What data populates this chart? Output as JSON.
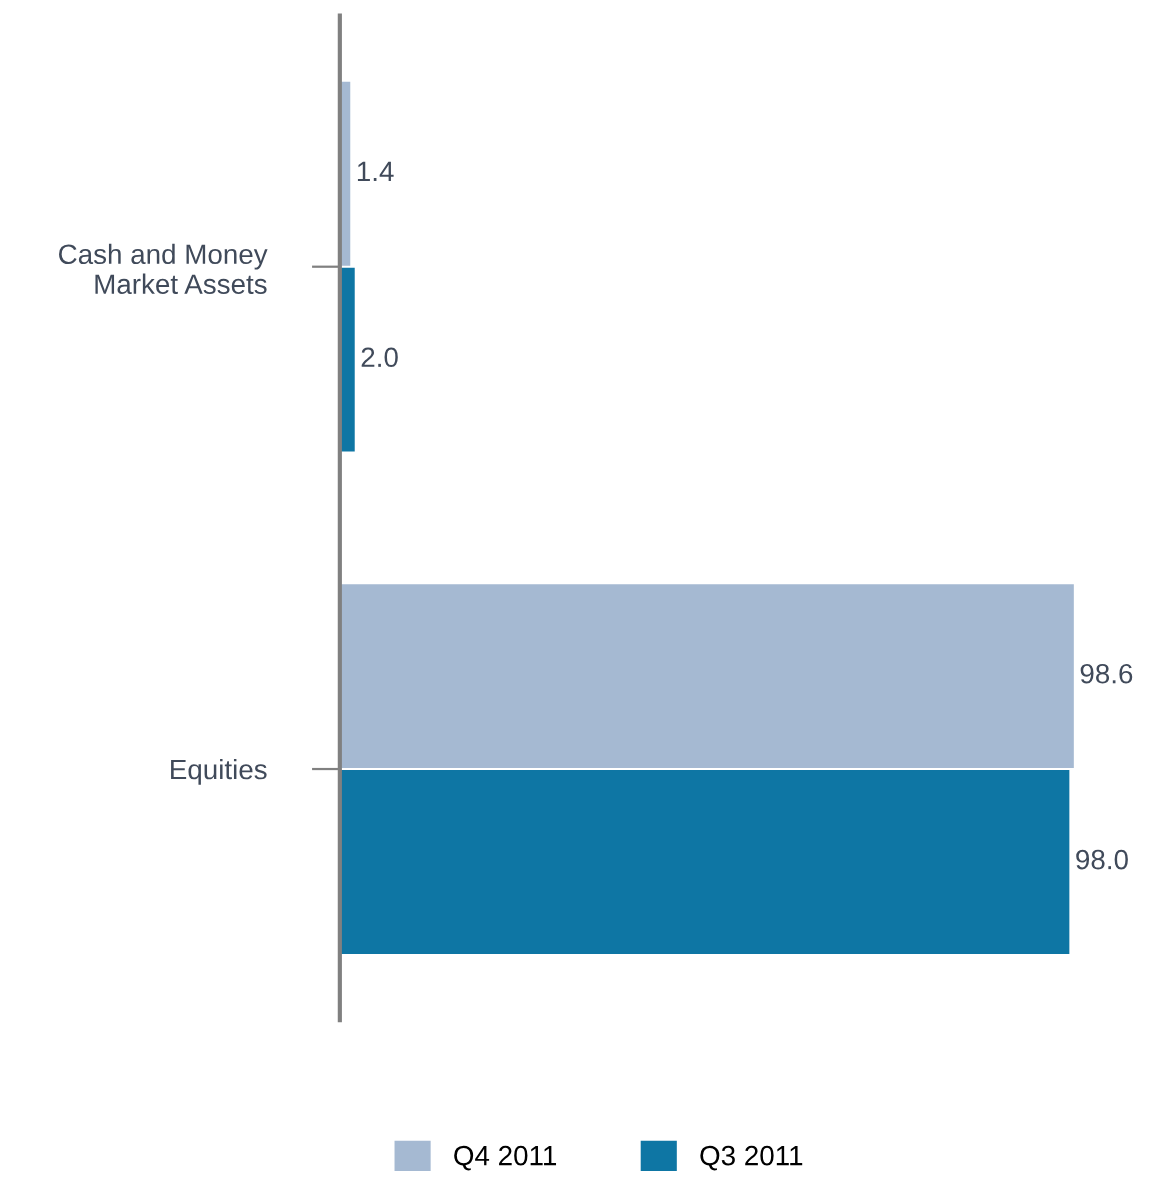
{
  "chart_data": {
    "type": "bar",
    "orientation": "horizontal",
    "categories": [
      "Cash and Money\nMarket Assets",
      "Equities"
    ],
    "series": [
      {
        "name": "Q4 2011",
        "color": "#a5b9d2",
        "values": [
          1.4,
          98.6
        ],
        "value_labels": [
          "1.4",
          "98.6"
        ]
      },
      {
        "name": "Q3 2011",
        "color": "#0e76a4",
        "values": [
          2.0,
          98.0
        ],
        "value_labels": [
          "2.0",
          "98.0"
        ]
      }
    ],
    "legend": "bottom",
    "grid": false
  }
}
